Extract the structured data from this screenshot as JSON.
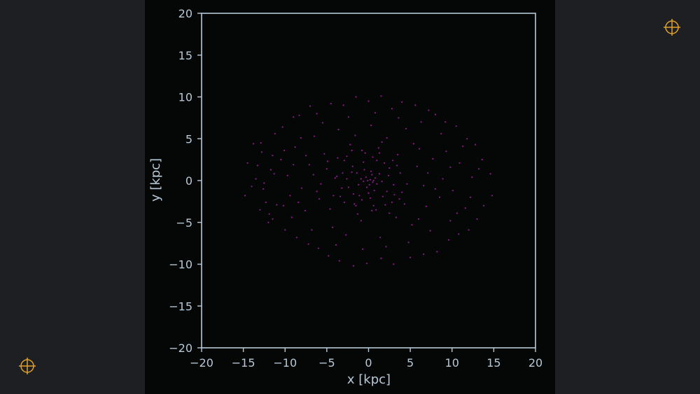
{
  "chart_data": {
    "type": "scatter",
    "title": "",
    "xlabel": "x [kpc]",
    "ylabel": "y [kpc]",
    "xlim": [
      -20,
      20
    ],
    "ylim": [
      -20,
      20
    ],
    "xticks": [
      "−20",
      "−15",
      "−10",
      "−5",
      "0",
      "5",
      "10",
      "15",
      "20"
    ],
    "yticks": [
      "20",
      "15",
      "10",
      "5",
      "0",
      "−5",
      "−10",
      "−15",
      "−20"
    ],
    "grid": false,
    "legend": "none",
    "series": [
      {
        "color": "#8e1a8e",
        "points": [
          [
            0.2,
            0.1
          ],
          [
            -0.3,
            0.4
          ],
          [
            0.5,
            -0.2
          ],
          [
            0.1,
            -0.5
          ],
          [
            -0.6,
            -0.1
          ],
          [
            0.8,
            0.3
          ],
          [
            -0.2,
            -0.8
          ],
          [
            0.4,
            0.7
          ],
          [
            -0.9,
            0.2
          ],
          [
            1.0,
            -0.4
          ],
          [
            0.3,
            1.1
          ],
          [
            -1.2,
            -0.5
          ],
          [
            1.3,
            0.8
          ],
          [
            -0.5,
            1.3
          ],
          [
            0.7,
            -1.2
          ],
          [
            -1.4,
            0.9
          ],
          [
            1.6,
            -0.1
          ],
          [
            0.0,
            -1.5
          ],
          [
            -0.1,
            0.0
          ],
          [
            0.6,
            0.0
          ],
          [
            -2.0,
            1.0
          ],
          [
            2.2,
            -1.3
          ],
          [
            -1.8,
            -1.6
          ],
          [
            2.5,
            1.5
          ],
          [
            -2.6,
            0.2
          ],
          [
            1.9,
            2.1
          ],
          [
            -0.8,
            -2.3
          ],
          [
            3.0,
            -0.5
          ],
          [
            -3.2,
            -0.9
          ],
          [
            0.5,
            2.8
          ],
          [
            -2.9,
            2.4
          ],
          [
            3.4,
            1.8
          ],
          [
            -1.5,
            -3.0
          ],
          [
            2.8,
            -2.6
          ],
          [
            -3.8,
            0.5
          ],
          [
            4.0,
            -1.4
          ],
          [
            0.9,
            -3.5
          ],
          [
            -4.2,
            -1.8
          ],
          [
            1.2,
            3.9
          ],
          [
            -2.0,
            3.6
          ],
          [
            -13.8,
            4.4
          ],
          [
            -12.9,
            4.5
          ],
          [
            -14.5,
            2.1
          ],
          [
            -13.5,
            0.2
          ],
          [
            -14.8,
            -1.8
          ],
          [
            -13.0,
            -3.5
          ],
          [
            -12.0,
            -5.0
          ],
          [
            -11.5,
            3.0
          ],
          [
            -12.6,
            -1.0
          ],
          [
            -11.2,
            5.6
          ],
          [
            -10.3,
            6.4
          ],
          [
            -9.0,
            7.6
          ],
          [
            -8.3,
            7.8
          ],
          [
            -7.0,
            8.9
          ],
          [
            -6.2,
            8.0
          ],
          [
            -4.5,
            9.2
          ],
          [
            -3.0,
            9.0
          ],
          [
            -1.5,
            10.0
          ],
          [
            0.0,
            9.5
          ],
          [
            1.5,
            10.1
          ],
          [
            2.8,
            8.6
          ],
          [
            4.0,
            9.4
          ],
          [
            5.6,
            9.0
          ],
          [
            7.2,
            8.4
          ],
          [
            8.0,
            7.9
          ],
          [
            9.2,
            7.0
          ],
          [
            10.5,
            6.5
          ],
          [
            11.8,
            5.0
          ],
          [
            12.8,
            4.3
          ],
          [
            13.6,
            2.5
          ],
          [
            14.6,
            0.8
          ],
          [
            14.8,
            -1.8
          ],
          [
            13.8,
            -3.0
          ],
          [
            13.0,
            -4.6
          ],
          [
            12.0,
            -5.9
          ],
          [
            10.8,
            -6.4
          ],
          [
            9.6,
            -7.1
          ],
          [
            8.2,
            -8.5
          ],
          [
            6.6,
            -8.8
          ],
          [
            5.0,
            -9.2
          ],
          [
            3.0,
            -10.0
          ],
          [
            1.5,
            -9.3
          ],
          [
            -0.2,
            -9.9
          ],
          [
            -1.8,
            -10.2
          ],
          [
            -3.5,
            -9.6
          ],
          [
            -4.8,
            -9.0
          ],
          [
            -6.0,
            -8.1
          ],
          [
            -7.2,
            -7.6
          ],
          [
            -8.6,
            -6.8
          ],
          [
            -10.0,
            -5.9
          ],
          [
            -11.5,
            -4.6
          ],
          [
            -12.3,
            -2.6
          ],
          [
            -10.5,
            2.5
          ],
          [
            -9.4,
            -1.8
          ],
          [
            -8.8,
            4.0
          ],
          [
            -7.6,
            -3.6
          ],
          [
            -6.5,
            5.3
          ],
          [
            -5.9,
            -2.2
          ],
          [
            -5.0,
            1.4
          ],
          [
            -4.3,
            -5.6
          ],
          [
            -3.6,
            6.1
          ],
          [
            -2.7,
            -6.5
          ],
          [
            -1.6,
            5.4
          ],
          [
            -0.9,
            -4.8
          ],
          [
            0.3,
            6.6
          ],
          [
            1.4,
            -6.8
          ],
          [
            2.2,
            5.1
          ],
          [
            3.3,
            -4.4
          ],
          [
            4.5,
            6.2
          ],
          [
            5.2,
            -5.3
          ],
          [
            6.1,
            3.8
          ],
          [
            6.9,
            -3.1
          ],
          [
            7.7,
            2.6
          ],
          [
            8.5,
            -2.0
          ],
          [
            9.3,
            3.5
          ],
          [
            10.1,
            -1.2
          ],
          [
            10.9,
            2.1
          ],
          [
            11.6,
            -3.3
          ],
          [
            12.4,
            0.4
          ],
          [
            9.8,
            -4.8
          ],
          [
            8.7,
            5.6
          ],
          [
            7.4,
            -6.0
          ],
          [
            6.3,
            7.0
          ],
          [
            4.8,
            -7.4
          ],
          [
            3.6,
            7.5
          ],
          [
            2.1,
            -7.9
          ],
          [
            0.8,
            8.1
          ],
          [
            -0.7,
            -8.2
          ],
          [
            -2.4,
            7.6
          ],
          [
            -3.9,
            -7.7
          ],
          [
            -5.5,
            6.9
          ],
          [
            -6.8,
            -5.9
          ],
          [
            -8.1,
            5.1
          ],
          [
            -9.2,
            -4.4
          ],
          [
            -10.1,
            3.6
          ],
          [
            -11.0,
            -2.9
          ],
          [
            -11.7,
            1.3
          ],
          [
            -12.5,
            -0.3
          ],
          [
            -9.7,
            0.6
          ],
          [
            -8.0,
            -0.9
          ],
          [
            -7.1,
            1.9
          ],
          [
            -6.2,
            -1.3
          ],
          [
            -5.3,
            3.2
          ],
          [
            -4.6,
            -3.4
          ],
          [
            -3.7,
            2.7
          ],
          [
            -2.9,
            -2.6
          ],
          [
            -2.2,
            4.3
          ],
          [
            -1.3,
            -4.0
          ],
          [
            -0.4,
            3.3
          ],
          [
            0.6,
            -3.0
          ],
          [
            1.6,
            4.6
          ],
          [
            2.5,
            -3.9
          ],
          [
            3.5,
            3.1
          ],
          [
            4.3,
            -2.8
          ],
          [
            5.4,
            4.4
          ],
          [
            6.0,
            -4.6
          ],
          [
            7.1,
            0.9
          ],
          [
            8.0,
            -1.0
          ],
          [
            8.9,
            0.2
          ],
          [
            9.8,
            1.6
          ],
          [
            10.6,
            -3.9
          ],
          [
            11.3,
            4.1
          ],
          [
            12.2,
            -2.0
          ],
          [
            13.2,
            1.4
          ],
          [
            -13.3,
            1.8
          ],
          [
            -14.0,
            -0.7
          ],
          [
            -12.8,
            3.4
          ],
          [
            -11.9,
            -4.0
          ],
          [
            -3.1,
            0.9
          ],
          [
            -2.4,
            -0.8
          ],
          [
            -1.9,
            1.7
          ],
          [
            -1.1,
            -1.8
          ],
          [
            -0.6,
            2.2
          ],
          [
            0.2,
            -2.1
          ],
          [
            1.0,
            2.4
          ],
          [
            1.7,
            -1.9
          ],
          [
            2.4,
            0.6
          ],
          [
            3.1,
            -1.7
          ],
          [
            3.8,
            0.9
          ],
          [
            4.6,
            -0.4
          ],
          [
            -4.0,
            0.3
          ],
          [
            -3.4,
            -1.9
          ],
          [
            -2.6,
            2.9
          ],
          [
            -1.7,
            -2.8
          ],
          [
            -0.8,
            3.6
          ],
          [
            0.4,
            -3.6
          ],
          [
            1.3,
            3.3
          ],
          [
            2.0,
            -2.9
          ],
          [
            2.9,
            2.4
          ],
          [
            3.7,
            -2.2
          ],
          [
            5.8,
            1.7
          ],
          [
            6.6,
            -0.6
          ],
          [
            -5.7,
            -0.4
          ],
          [
            -4.9,
            2.3
          ],
          [
            -6.6,
            0.7
          ],
          [
            -7.5,
            3.0
          ],
          [
            -8.4,
            -2.6
          ],
          [
            -9.0,
            1.9
          ],
          [
            -10.2,
            -3.0
          ],
          [
            -11.3,
            0.8
          ]
        ]
      }
    ]
  }
}
